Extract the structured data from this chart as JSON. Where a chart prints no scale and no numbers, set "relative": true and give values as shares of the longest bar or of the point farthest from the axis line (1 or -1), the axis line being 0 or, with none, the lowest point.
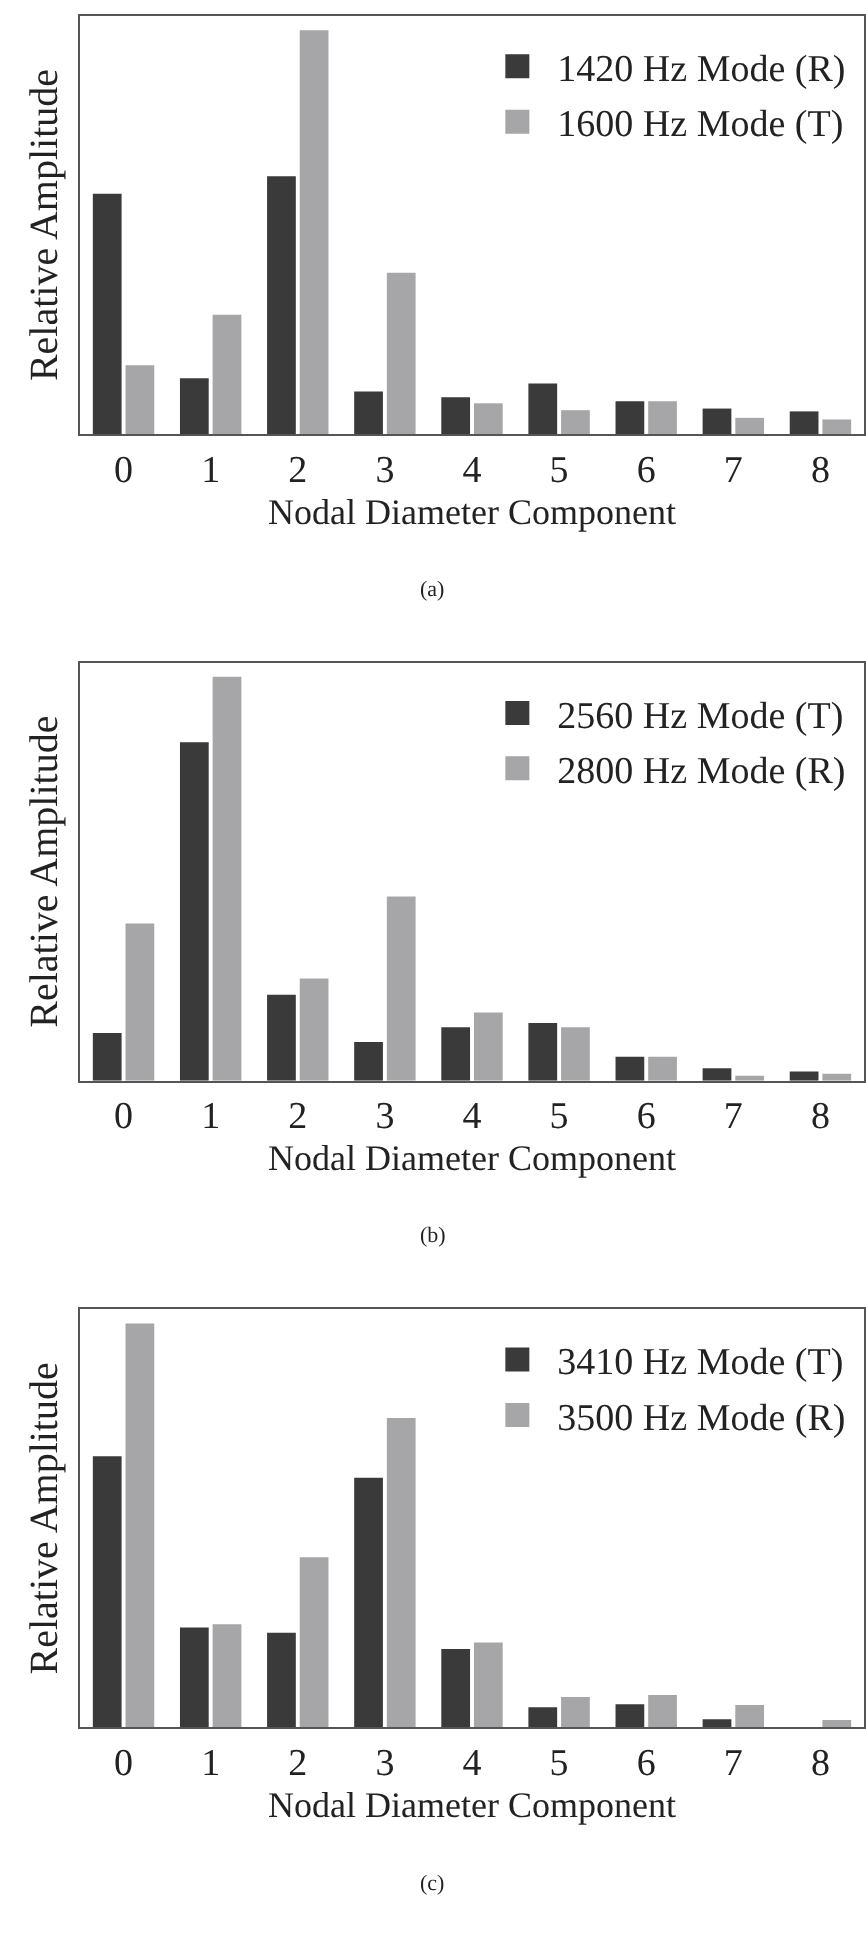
{
  "chart_data": [
    {
      "type": "bar",
      "relative": true,
      "xlabel": "Nodal Diameter Component",
      "ylabel": "Relative Amplitude",
      "legend": "top right",
      "annotations": [
        "(a)"
      ],
      "categories": [
        "0",
        "1",
        "2",
        "3",
        "4",
        "5",
        "6",
        "7",
        "8"
      ],
      "series": [
        {
          "name": "1420 Hz Mode (R)",
          "color": "#3a3a3a",
          "values": [
            0.595,
            0.138,
            0.638,
            0.105,
            0.091,
            0.125,
            0.081,
            0.063,
            0.056
          ]
        },
        {
          "name": "1600 Hz Mode (T)",
          "color": "#a6a6a8",
          "values": [
            0.17,
            0.295,
            1,
            0.399,
            0.076,
            0.059,
            0.081,
            0.04,
            0.036
          ]
        }
      ]
    },
    {
      "type": "bar",
      "relative": true,
      "xlabel": "Nodal Diameter Component",
      "ylabel": "Relative Amplitude",
      "legend": "top right",
      "annotations": [
        "(b)"
      ],
      "categories": [
        "0",
        "1",
        "2",
        "3",
        "4",
        "5",
        "6",
        "7",
        "8"
      ],
      "series": [
        {
          "name": "2560 Hz Mode (T)",
          "color": "#3a3a3a",
          "values": [
            0.118,
            0.838,
            0.213,
            0.096,
            0.132,
            0.143,
            0.059,
            0.031,
            0.023
          ]
        },
        {
          "name": "2800 Hz Mode (R)",
          "color": "#a6a6a8",
          "values": [
            0.389,
            1,
            0.253,
            0.456,
            0.169,
            0.132,
            0.059,
            0.012,
            0.017
          ]
        }
      ]
    },
    {
      "type": "bar",
      "relative": true,
      "xlabel": "Nodal Diameter Component",
      "ylabel": "Relative Amplitude",
      "legend": "top right",
      "annotations": [
        "(c)"
      ],
      "categories": [
        "0",
        "1",
        "2",
        "3",
        "4",
        "5",
        "6",
        "7",
        "8"
      ],
      "series": [
        {
          "name": "3410 Hz Mode (T)",
          "color": "#3a3a3a",
          "values": [
            0.671,
            0.247,
            0.234,
            0.618,
            0.194,
            0.05,
            0.057,
            0.02,
            0
          ]
        },
        {
          "name": "3500 Hz Mode (R)",
          "color": "#a6a6a8",
          "values": [
            1,
            0.255,
            0.421,
            0.766,
            0.21,
            0.075,
            0.08,
            0.055,
            0.018
          ]
        }
      ]
    }
  ]
}
